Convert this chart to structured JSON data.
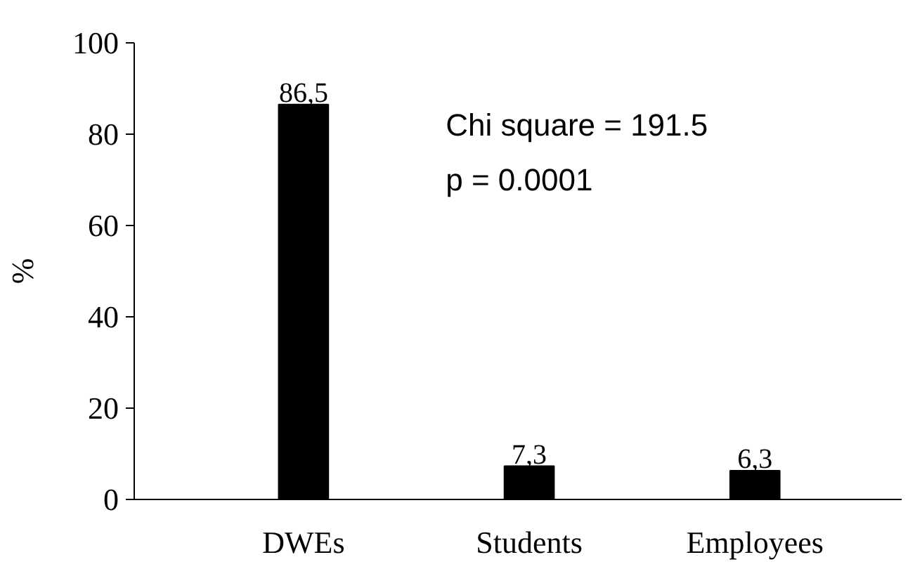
{
  "chart_data": {
    "type": "bar",
    "ylabel": "%",
    "categories": [
      "DWEs",
      "Students",
      "Employees"
    ],
    "values": [
      86.5,
      7.3,
      6.3
    ],
    "value_labels": [
      "86,5",
      "7,3",
      "6,3"
    ],
    "color": "#000000",
    "ylim": [
      0,
      100
    ],
    "yticks": [
      0,
      20,
      40,
      60,
      80,
      100
    ],
    "annotations": [
      "Chi square  = 191.5",
      "p = 0.0001"
    ],
    "grid": false
  }
}
